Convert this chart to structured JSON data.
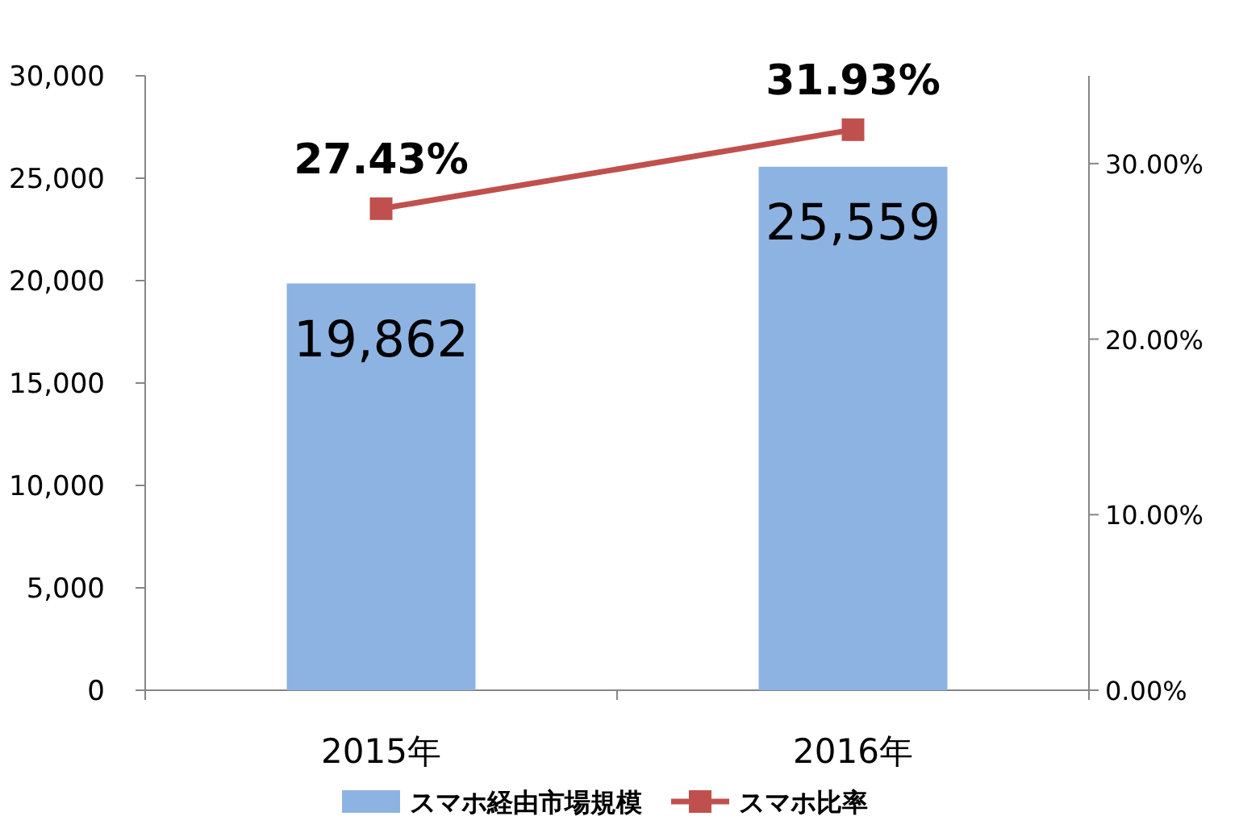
{
  "chart_data": {
    "type": "bar",
    "categories": [
      "2015年",
      "2016年"
    ],
    "series": [
      {
        "name": "スマホ経由市場規模",
        "color": "#8db3e2",
        "values": [
          19862,
          25559
        ],
        "value_labels": [
          "19,862",
          "25,559"
        ]
      },
      {
        "name": "スマホ比率",
        "type": "line",
        "axis": "y2",
        "color": "#c0504d",
        "marker": "square",
        "values": [
          27.43,
          31.93
        ],
        "value_labels": [
          "27.43%",
          "31.93%"
        ]
      }
    ],
    "ylim": [
      0,
      30000
    ],
    "yticks": [
      {
        "value": 0,
        "label": "0"
      },
      {
        "value": 5000,
        "label": "5,000"
      },
      {
        "value": 10000,
        "label": "10,000"
      },
      {
        "value": 15000,
        "label": "15,000"
      },
      {
        "value": 20000,
        "label": "20,000"
      },
      {
        "value": 25000,
        "label": "25,000"
      },
      {
        "value": 30000,
        "label": "30,000"
      }
    ],
    "y2lim": [
      0,
      35
    ],
    "y2ticks": [
      {
        "value": 0,
        "label": "0.00%"
      },
      {
        "value": 10,
        "label": "10.00%"
      },
      {
        "value": 20,
        "label": "20.00%"
      },
      {
        "value": 30,
        "label": "30.00%"
      }
    ],
    "legend": "bottom"
  }
}
